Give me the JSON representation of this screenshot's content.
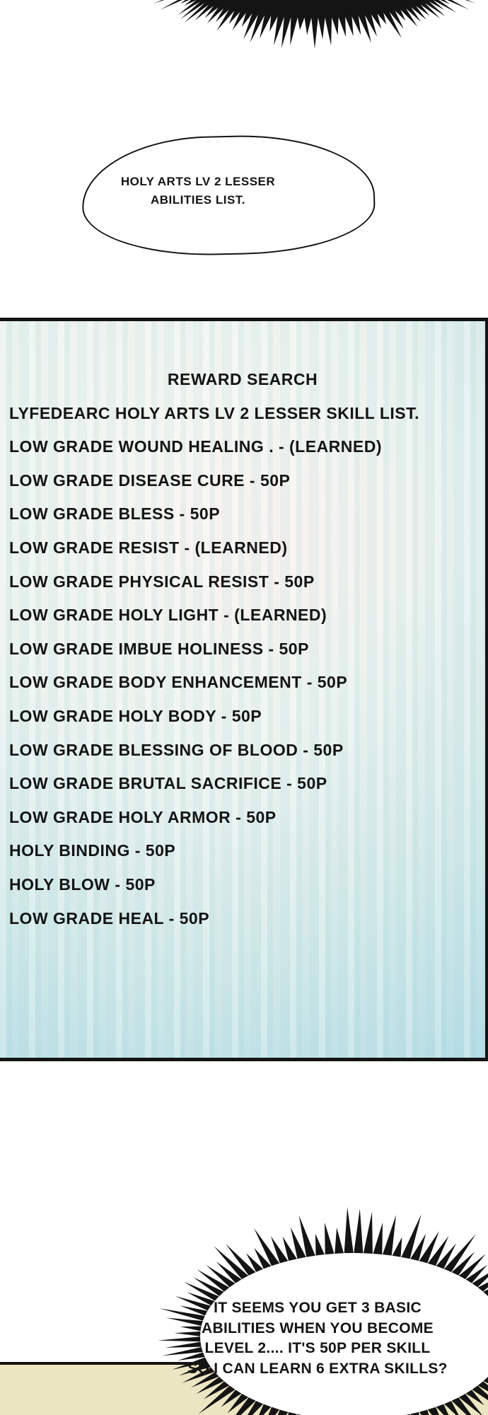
{
  "colors": {
    "ink": "#141414",
    "paper": "#ffffff",
    "panel-cyan-deep": "#a5d6e2",
    "panel-cyan": "#cde6e6",
    "panel-light": "#f8f6f2",
    "panel-mist": "#e9f1ec",
    "beige": "#ece5c1"
  },
  "top_bubble": {
    "lines": [
      "HOLY ARTS LV 2 LESSER",
      "ABILITIES LIST."
    ]
  },
  "skill_panel": {
    "title": "REWARD SEARCH",
    "subtitle": "LYFEDEARC HOLY ARTS LV 2 LESSER SKILL LIST.",
    "skills": [
      "LOW GRADE WOUND HEALING . - (LEARNED)",
      "LOW GRADE DISEASE CURE - 50P",
      "LOW GRADE BLESS - 50P",
      "LOW GRADE RESIST - (LEARNED)",
      "LOW GRADE PHYSICAL RESIST - 50P",
      "LOW GRADE HOLY LIGHT - (LEARNED)",
      "LOW GRADE IMBUE HOLINESS - 50P",
      "LOW GRADE BODY ENHANCEMENT - 50P",
      "LOW GRADE HOLY BODY - 50P",
      "LOW GRADE BLESSING OF BLOOD - 50P",
      "LOW GRADE BRUTAL SACRIFICE - 50P",
      "LOW GRADE HOLY ARMOR - 50P",
      "HOLY BINDING - 50P",
      "HOLY BLOW - 50P",
      "LOW GRADE HEAL - 50P"
    ]
  },
  "burst_bubble": {
    "lines": [
      "IT SEEMS YOU GET 3 BASIC",
      "ABILITIES WHEN YOU BECOME",
      "LEVEL 2.... IT'S 50P PER SKILL",
      "SO I CAN LEARN 6 EXTRA SKILLS?"
    ]
  }
}
